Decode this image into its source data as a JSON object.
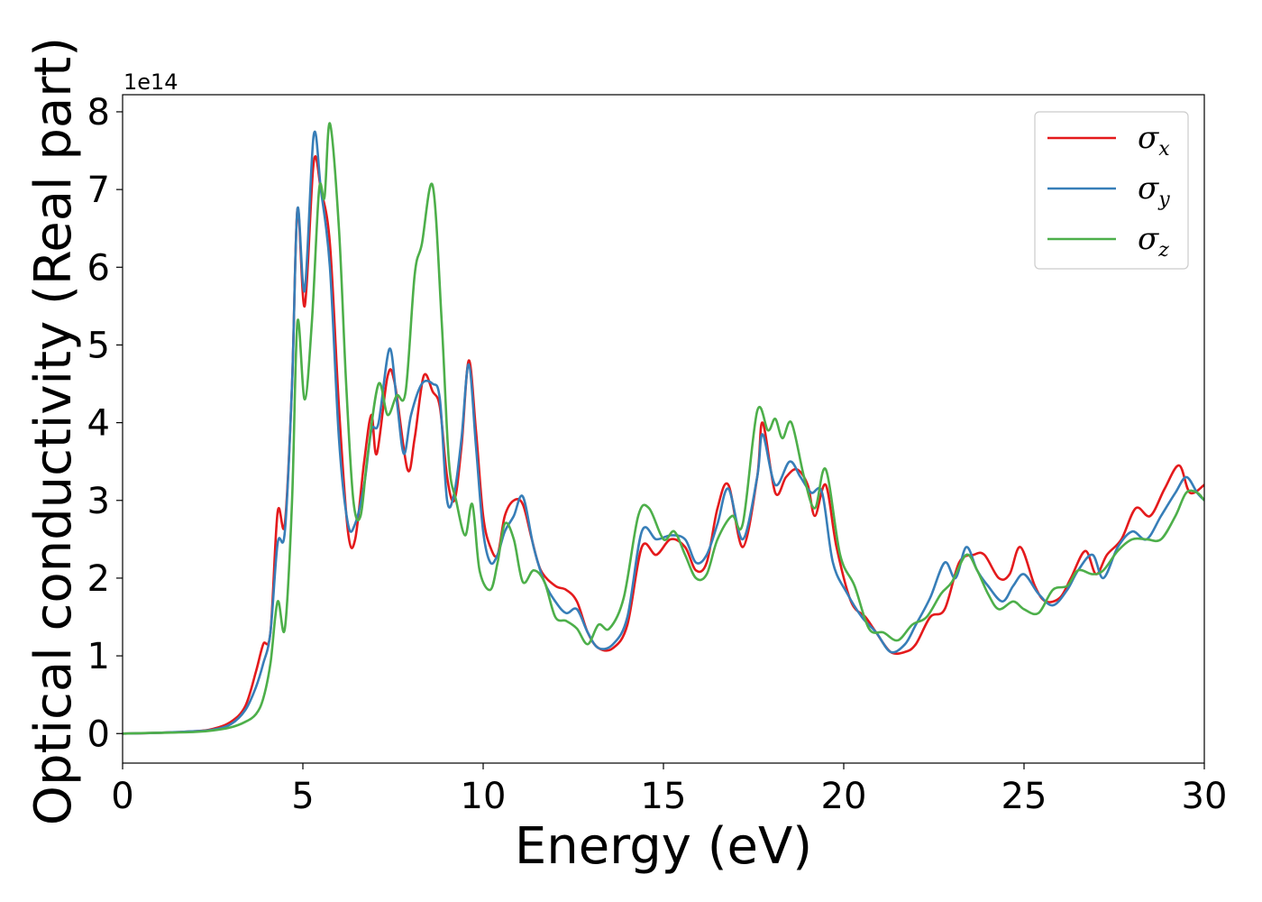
{
  "chart_data": {
    "type": "line",
    "xlabel": "Energy (eV)",
    "ylabel": "Optical conductivity (Real part)",
    "y_offset_label": "1e14",
    "xlim": [
      0,
      30
    ],
    "ylim": [
      -0.38,
      8.22
    ],
    "x_ticks": [
      0,
      5,
      10,
      15,
      20,
      25,
      30
    ],
    "y_ticks": [
      0,
      1,
      2,
      3,
      4,
      5,
      6,
      7,
      8
    ],
    "grid": false,
    "legend_placement": "top-right",
    "series": [
      {
        "name": "σx",
        "symbol": "σ",
        "subscript": "x",
        "color": "#e41a1c",
        "points": [
          [
            0,
            0
          ],
          [
            1,
            0.01
          ],
          [
            2,
            0.03
          ],
          [
            2.5,
            0.06
          ],
          [
            3,
            0.15
          ],
          [
            3.4,
            0.35
          ],
          [
            3.7,
            0.8
          ],
          [
            3.9,
            1.15
          ],
          [
            4.1,
            1.3
          ],
          [
            4.3,
            2.85
          ],
          [
            4.5,
            2.7
          ],
          [
            4.7,
            4.5
          ],
          [
            4.85,
            6.75
          ],
          [
            5.05,
            5.5
          ],
          [
            5.3,
            7.35
          ],
          [
            5.5,
            7.0
          ],
          [
            5.75,
            6.3
          ],
          [
            6.0,
            4.2
          ],
          [
            6.25,
            2.6
          ],
          [
            6.45,
            2.5
          ],
          [
            6.7,
            3.5
          ],
          [
            6.9,
            4.1
          ],
          [
            7.05,
            3.6
          ],
          [
            7.35,
            4.6
          ],
          [
            7.55,
            4.5
          ],
          [
            7.9,
            3.4
          ],
          [
            8.1,
            3.8
          ],
          [
            8.35,
            4.6
          ],
          [
            8.6,
            4.4
          ],
          [
            8.8,
            4.2
          ],
          [
            9.0,
            3.3
          ],
          [
            9.2,
            3.0
          ],
          [
            9.4,
            3.7
          ],
          [
            9.6,
            4.8
          ],
          [
            9.8,
            3.9
          ],
          [
            10.0,
            2.8
          ],
          [
            10.2,
            2.4
          ],
          [
            10.4,
            2.3
          ],
          [
            10.6,
            2.8
          ],
          [
            10.85,
            3.0
          ],
          [
            11.1,
            2.95
          ],
          [
            11.35,
            2.5
          ],
          [
            11.6,
            2.1
          ],
          [
            12.0,
            1.9
          ],
          [
            12.3,
            1.85
          ],
          [
            12.6,
            1.7
          ],
          [
            12.9,
            1.3
          ],
          [
            13.2,
            1.1
          ],
          [
            13.6,
            1.1
          ],
          [
            14.0,
            1.4
          ],
          [
            14.4,
            2.4
          ],
          [
            14.8,
            2.3
          ],
          [
            15.2,
            2.5
          ],
          [
            15.6,
            2.4
          ],
          [
            15.9,
            2.1
          ],
          [
            16.2,
            2.2
          ],
          [
            16.5,
            2.9
          ],
          [
            16.8,
            3.2
          ],
          [
            17.2,
            2.4
          ],
          [
            17.6,
            3.3
          ],
          [
            17.75,
            4.0
          ],
          [
            18.1,
            3.1
          ],
          [
            18.4,
            3.3
          ],
          [
            18.7,
            3.4
          ],
          [
            19.0,
            3.2
          ],
          [
            19.2,
            2.8
          ],
          [
            19.5,
            3.2
          ],
          [
            19.8,
            2.4
          ],
          [
            20.2,
            1.7
          ],
          [
            20.6,
            1.5
          ],
          [
            20.9,
            1.3
          ],
          [
            21.3,
            1.05
          ],
          [
            21.7,
            1.05
          ],
          [
            22.0,
            1.15
          ],
          [
            22.4,
            1.5
          ],
          [
            22.8,
            1.6
          ],
          [
            23.2,
            2.2
          ],
          [
            23.6,
            2.3
          ],
          [
            23.9,
            2.3
          ],
          [
            24.3,
            2.0
          ],
          [
            24.6,
            2.05
          ],
          [
            24.9,
            2.4
          ],
          [
            25.3,
            1.9
          ],
          [
            25.6,
            1.7
          ],
          [
            26.0,
            1.75
          ],
          [
            26.3,
            2.0
          ],
          [
            26.7,
            2.35
          ],
          [
            27.0,
            2.05
          ],
          [
            27.3,
            2.3
          ],
          [
            27.7,
            2.5
          ],
          [
            28.1,
            2.9
          ],
          [
            28.5,
            2.8
          ],
          [
            28.9,
            3.15
          ],
          [
            29.3,
            3.45
          ],
          [
            29.6,
            3.1
          ],
          [
            30,
            3.2
          ]
        ]
      },
      {
        "name": "σy",
        "symbol": "σ",
        "subscript": "y",
        "color": "#377eb8",
        "points": [
          [
            0,
            0
          ],
          [
            1,
            0.01
          ],
          [
            2,
            0.03
          ],
          [
            2.5,
            0.05
          ],
          [
            3,
            0.12
          ],
          [
            3.4,
            0.3
          ],
          [
            3.7,
            0.6
          ],
          [
            3.9,
            0.9
          ],
          [
            4.1,
            1.3
          ],
          [
            4.3,
            2.45
          ],
          [
            4.5,
            2.6
          ],
          [
            4.7,
            4.5
          ],
          [
            4.85,
            6.75
          ],
          [
            5.05,
            5.7
          ],
          [
            5.3,
            7.7
          ],
          [
            5.5,
            7.0
          ],
          [
            5.75,
            6.0
          ],
          [
            6.0,
            3.8
          ],
          [
            6.25,
            2.7
          ],
          [
            6.45,
            2.7
          ],
          [
            6.7,
            3.2
          ],
          [
            6.9,
            3.9
          ],
          [
            7.1,
            4.0
          ],
          [
            7.4,
            4.95
          ],
          [
            7.6,
            4.3
          ],
          [
            7.8,
            3.6
          ],
          [
            8.0,
            4.1
          ],
          [
            8.3,
            4.5
          ],
          [
            8.6,
            4.5
          ],
          [
            8.8,
            4.3
          ],
          [
            9.0,
            3.0
          ],
          [
            9.2,
            3.1
          ],
          [
            9.4,
            3.8
          ],
          [
            9.6,
            4.75
          ],
          [
            9.8,
            3.7
          ],
          [
            10.0,
            2.6
          ],
          [
            10.2,
            2.2
          ],
          [
            10.4,
            2.3
          ],
          [
            10.6,
            2.6
          ],
          [
            10.85,
            2.8
          ],
          [
            11.1,
            3.05
          ],
          [
            11.4,
            2.4
          ],
          [
            11.7,
            1.95
          ],
          [
            12.0,
            1.7
          ],
          [
            12.3,
            1.55
          ],
          [
            12.6,
            1.6
          ],
          [
            12.9,
            1.3
          ],
          [
            13.2,
            1.1
          ],
          [
            13.6,
            1.15
          ],
          [
            14.0,
            1.5
          ],
          [
            14.4,
            2.6
          ],
          [
            14.8,
            2.5
          ],
          [
            15.2,
            2.55
          ],
          [
            15.6,
            2.5
          ],
          [
            15.9,
            2.2
          ],
          [
            16.2,
            2.3
          ],
          [
            16.5,
            2.7
          ],
          [
            16.8,
            3.15
          ],
          [
            17.2,
            2.5
          ],
          [
            17.6,
            3.3
          ],
          [
            17.75,
            3.85
          ],
          [
            18.1,
            3.2
          ],
          [
            18.5,
            3.5
          ],
          [
            18.8,
            3.3
          ],
          [
            19.1,
            3.1
          ],
          [
            19.4,
            3.1
          ],
          [
            19.7,
            2.2
          ],
          [
            20.1,
            1.8
          ],
          [
            20.5,
            1.5
          ],
          [
            20.9,
            1.3
          ],
          [
            21.3,
            1.05
          ],
          [
            21.7,
            1.15
          ],
          [
            22.0,
            1.4
          ],
          [
            22.4,
            1.75
          ],
          [
            22.8,
            2.2
          ],
          [
            23.1,
            2.0
          ],
          [
            23.4,
            2.4
          ],
          [
            23.7,
            2.1
          ],
          [
            24.0,
            1.9
          ],
          [
            24.4,
            1.7
          ],
          [
            24.7,
            1.9
          ],
          [
            25.0,
            2.05
          ],
          [
            25.4,
            1.8
          ],
          [
            25.8,
            1.65
          ],
          [
            26.2,
            1.85
          ],
          [
            26.5,
            2.1
          ],
          [
            26.9,
            2.3
          ],
          [
            27.2,
            2.0
          ],
          [
            27.6,
            2.4
          ],
          [
            28.0,
            2.6
          ],
          [
            28.4,
            2.5
          ],
          [
            28.8,
            2.8
          ],
          [
            29.2,
            3.1
          ],
          [
            29.5,
            3.3
          ],
          [
            29.8,
            3.1
          ],
          [
            30,
            3.0
          ]
        ]
      },
      {
        "name": "σz",
        "symbol": "σ",
        "subscript": "z",
        "color": "#4daf4a",
        "points": [
          [
            0,
            0
          ],
          [
            1,
            0.01
          ],
          [
            2,
            0.02
          ],
          [
            2.5,
            0.04
          ],
          [
            3,
            0.08
          ],
          [
            3.4,
            0.15
          ],
          [
            3.7,
            0.25
          ],
          [
            3.9,
            0.45
          ],
          [
            4.1,
            0.9
          ],
          [
            4.3,
            1.7
          ],
          [
            4.5,
            1.35
          ],
          [
            4.7,
            3.0
          ],
          [
            4.85,
            5.3
          ],
          [
            5.05,
            4.3
          ],
          [
            5.25,
            5.3
          ],
          [
            5.45,
            7.0
          ],
          [
            5.6,
            6.9
          ],
          [
            5.75,
            7.85
          ],
          [
            6.0,
            6.5
          ],
          [
            6.2,
            4.5
          ],
          [
            6.4,
            3.0
          ],
          [
            6.6,
            2.8
          ],
          [
            6.8,
            3.6
          ],
          [
            7.1,
            4.5
          ],
          [
            7.35,
            4.1
          ],
          [
            7.6,
            4.35
          ],
          [
            7.85,
            4.4
          ],
          [
            8.1,
            5.9
          ],
          [
            8.3,
            6.3
          ],
          [
            8.6,
            7.05
          ],
          [
            8.85,
            5.3
          ],
          [
            9.05,
            3.5
          ],
          [
            9.25,
            3.0
          ],
          [
            9.5,
            2.55
          ],
          [
            9.7,
            2.95
          ],
          [
            9.9,
            2.1
          ],
          [
            10.2,
            1.85
          ],
          [
            10.4,
            2.2
          ],
          [
            10.6,
            2.7
          ],
          [
            10.85,
            2.5
          ],
          [
            11.1,
            1.95
          ],
          [
            11.4,
            2.1
          ],
          [
            11.7,
            1.95
          ],
          [
            12.0,
            1.5
          ],
          [
            12.3,
            1.45
          ],
          [
            12.6,
            1.35
          ],
          [
            12.9,
            1.15
          ],
          [
            13.2,
            1.4
          ],
          [
            13.5,
            1.35
          ],
          [
            13.9,
            1.75
          ],
          [
            14.3,
            2.8
          ],
          [
            14.6,
            2.9
          ],
          [
            15.0,
            2.5
          ],
          [
            15.3,
            2.6
          ],
          [
            15.6,
            2.3
          ],
          [
            15.9,
            2.0
          ],
          [
            16.2,
            2.05
          ],
          [
            16.5,
            2.5
          ],
          [
            16.9,
            2.8
          ],
          [
            17.2,
            2.7
          ],
          [
            17.6,
            4.15
          ],
          [
            17.9,
            3.9
          ],
          [
            18.1,
            4.05
          ],
          [
            18.3,
            3.8
          ],
          [
            18.55,
            4.0
          ],
          [
            18.9,
            3.3
          ],
          [
            19.2,
            2.9
          ],
          [
            19.5,
            3.4
          ],
          [
            19.9,
            2.3
          ],
          [
            20.3,
            1.9
          ],
          [
            20.7,
            1.35
          ],
          [
            21.1,
            1.3
          ],
          [
            21.5,
            1.2
          ],
          [
            21.9,
            1.4
          ],
          [
            22.3,
            1.5
          ],
          [
            22.7,
            1.8
          ],
          [
            23.0,
            1.95
          ],
          [
            23.4,
            2.3
          ],
          [
            23.7,
            2.1
          ],
          [
            24.0,
            1.8
          ],
          [
            24.3,
            1.6
          ],
          [
            24.7,
            1.7
          ],
          [
            25.0,
            1.6
          ],
          [
            25.4,
            1.55
          ],
          [
            25.8,
            1.85
          ],
          [
            26.2,
            1.9
          ],
          [
            26.5,
            2.1
          ],
          [
            26.9,
            2.05
          ],
          [
            27.2,
            2.1
          ],
          [
            27.6,
            2.35
          ],
          [
            28.0,
            2.5
          ],
          [
            28.4,
            2.5
          ],
          [
            28.8,
            2.5
          ],
          [
            29.2,
            2.8
          ],
          [
            29.5,
            3.1
          ],
          [
            29.8,
            3.1
          ],
          [
            30,
            3.0
          ]
        ]
      }
    ]
  }
}
